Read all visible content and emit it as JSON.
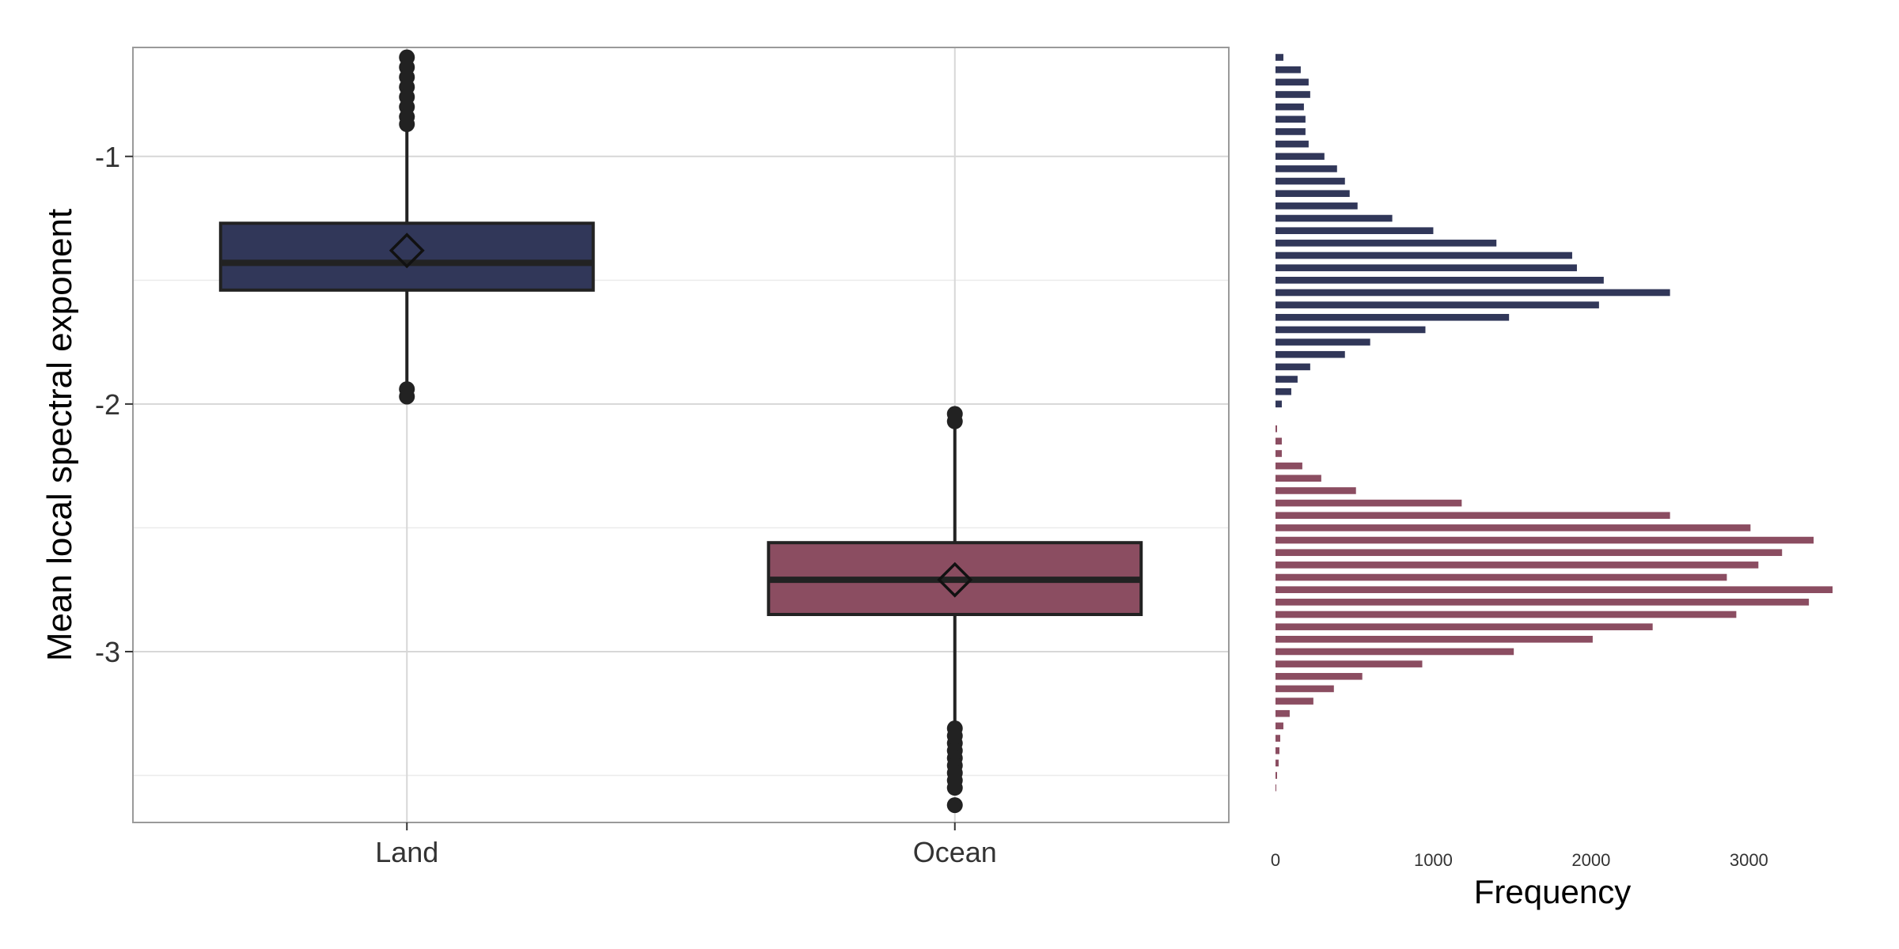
{
  "chart_data": [
    {
      "type": "box",
      "ylabel": "Mean local spectral exponent",
      "ylim": [
        -3.69,
        -0.56
      ],
      "yticks": [
        -3,
        -2,
        -1
      ],
      "ytick_labels": [
        "-3",
        "-2",
        "-1"
      ],
      "grid": true,
      "categories": [
        "Land",
        "Ocean"
      ],
      "colors": [
        "#313759",
        "#8b4d61"
      ],
      "boxes": [
        {
          "category": "Land",
          "median": -1.43,
          "mean": -1.38,
          "q1": -1.54,
          "q3": -1.27,
          "whisker_low": -1.92,
          "whisker_high": -0.86,
          "outliers_high": [
            -0.6,
            -0.64,
            -0.68,
            -0.72,
            -0.76,
            -0.8,
            -0.84,
            -0.87
          ],
          "outliers_low": [
            -1.94,
            -1.97
          ]
        },
        {
          "category": "Ocean",
          "median": -2.71,
          "mean": -2.71,
          "q1": -2.85,
          "q3": -2.56,
          "whisker_low": -3.29,
          "whisker_high": -2.08,
          "outliers_high": [
            -2.04,
            -2.07
          ],
          "outliers_low": [
            -3.31,
            -3.34,
            -3.37,
            -3.4,
            -3.43,
            -3.46,
            -3.49,
            -3.52,
            -3.55,
            -3.62
          ]
        }
      ]
    },
    {
      "type": "bar",
      "orientation": "horizontal",
      "xlabel": "Frequency",
      "xlim": [
        0,
        3600
      ],
      "xticks": [
        0,
        1000,
        2000,
        3000
      ],
      "xtick_labels": [
        "0",
        "1000",
        "2000",
        "3000"
      ],
      "ylim": [
        -3.69,
        -0.56
      ],
      "grid": false,
      "bin_width": 0.05,
      "series": [
        {
          "color": "#313759",
          "bins": [
            {
              "y": -0.6,
              "count": 50
            },
            {
              "y": -0.65,
              "count": 160
            },
            {
              "y": -0.7,
              "count": 210
            },
            {
              "y": -0.75,
              "count": 220
            },
            {
              "y": -0.8,
              "count": 180
            },
            {
              "y": -0.85,
              "count": 190
            },
            {
              "y": -0.9,
              "count": 190
            },
            {
              "y": -0.95,
              "count": 210
            },
            {
              "y": -1.0,
              "count": 310
            },
            {
              "y": -1.05,
              "count": 390
            },
            {
              "y": -1.1,
              "count": 440
            },
            {
              "y": -1.15,
              "count": 470
            },
            {
              "y": -1.2,
              "count": 520
            },
            {
              "y": -1.25,
              "count": 740
            },
            {
              "y": -1.3,
              "count": 1000
            },
            {
              "y": -1.35,
              "count": 1400
            },
            {
              "y": -1.4,
              "count": 1880
            },
            {
              "y": -1.45,
              "count": 1910
            },
            {
              "y": -1.5,
              "count": 2080
            },
            {
              "y": -1.55,
              "count": 2500
            },
            {
              "y": -1.6,
              "count": 2050
            },
            {
              "y": -1.65,
              "count": 1480
            },
            {
              "y": -1.7,
              "count": 950
            },
            {
              "y": -1.75,
              "count": 600
            },
            {
              "y": -1.8,
              "count": 440
            },
            {
              "y": -1.85,
              "count": 220
            },
            {
              "y": -1.9,
              "count": 140
            },
            {
              "y": -1.95,
              "count": 100
            },
            {
              "y": -2.0,
              "count": 40
            }
          ]
        },
        {
          "color": "#8b4d61",
          "bins": [
            {
              "y": -2.1,
              "count": 10
            },
            {
              "y": -2.15,
              "count": 40
            },
            {
              "y": -2.2,
              "count": 40
            },
            {
              "y": -2.25,
              "count": 170
            },
            {
              "y": -2.3,
              "count": 290
            },
            {
              "y": -2.35,
              "count": 510
            },
            {
              "y": -2.4,
              "count": 1180
            },
            {
              "y": -2.45,
              "count": 2500
            },
            {
              "y": -2.5,
              "count": 3010
            },
            {
              "y": -2.55,
              "count": 3410
            },
            {
              "y": -2.6,
              "count": 3210
            },
            {
              "y": -2.65,
              "count": 3060
            },
            {
              "y": -2.7,
              "count": 2860
            },
            {
              "y": -2.75,
              "count": 3530
            },
            {
              "y": -2.8,
              "count": 3380
            },
            {
              "y": -2.85,
              "count": 2920
            },
            {
              "y": -2.9,
              "count": 2390
            },
            {
              "y": -2.95,
              "count": 2010
            },
            {
              "y": -3.0,
              "count": 1510
            },
            {
              "y": -3.05,
              "count": 930
            },
            {
              "y": -3.1,
              "count": 550
            },
            {
              "y": -3.15,
              "count": 370
            },
            {
              "y": -3.2,
              "count": 240
            },
            {
              "y": -3.25,
              "count": 90
            },
            {
              "y": -3.3,
              "count": 50
            },
            {
              "y": -3.35,
              "count": 30
            },
            {
              "y": -3.4,
              "count": 25
            },
            {
              "y": -3.45,
              "count": 20
            },
            {
              "y": -3.5,
              "count": 10
            },
            {
              "y": -3.55,
              "count": 5
            }
          ]
        }
      ]
    }
  ]
}
